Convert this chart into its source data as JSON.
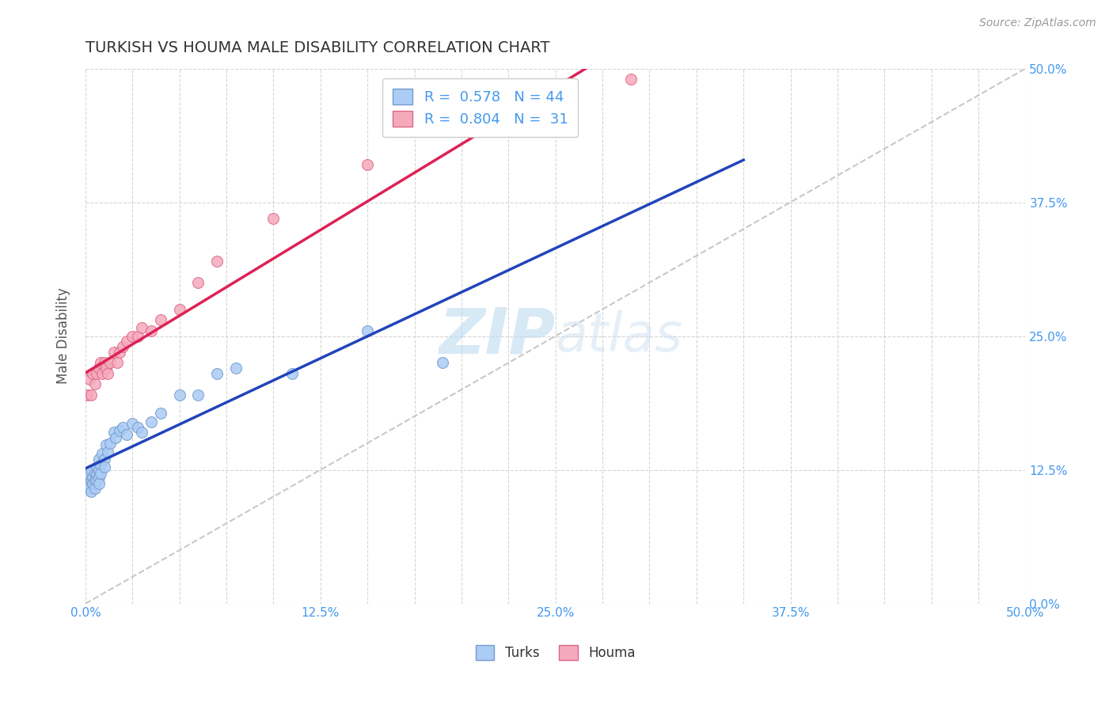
{
  "title": "TURKISH VS HOUMA MALE DISABILITY CORRELATION CHART",
  "source_text": "Source: ZipAtlas.com",
  "ylabel": "Male Disability",
  "xlim": [
    0.0,
    0.5
  ],
  "ylim": [
    0.0,
    0.5
  ],
  "background_color": "#ffffff",
  "grid_color": "#cccccc",
  "watermark_text": "ZIPatlas",
  "turks_color": "#aaccf5",
  "turks_edge_color": "#7799cc",
  "houma_color": "#f5aabc",
  "houma_edge_color": "#dd6688",
  "turks_line_color": "#2244bb",
  "houma_line_color": "#dd2255",
  "diagonal_color": "#bbbbbb",
  "R_turks": 0.578,
  "N_turks": 44,
  "R_houma": 0.804,
  "N_houma": 31,
  "title_color": "#333333",
  "axis_label_color": "#555555",
  "tick_label_color": "#4499ee",
  "legend_label_turks": "Turks",
  "legend_label_houma": "Houma",
  "turks_x": [
    0.001,
    0.001,
    0.002,
    0.002,
    0.003,
    0.003,
    0.003,
    0.004,
    0.004,
    0.005,
    0.005,
    0.005,
    0.006,
    0.006,
    0.006,
    0.007,
    0.007,
    0.007,
    0.007,
    0.008,
    0.008,
    0.009,
    0.01,
    0.01,
    0.011,
    0.012,
    0.013,
    0.015,
    0.016,
    0.018,
    0.02,
    0.022,
    0.025,
    0.028,
    0.03,
    0.035,
    0.04,
    0.05,
    0.06,
    0.07,
    0.08,
    0.11,
    0.15,
    0.19
  ],
  "turks_y": [
    0.115,
    0.11,
    0.12,
    0.108,
    0.125,
    0.115,
    0.105,
    0.118,
    0.112,
    0.122,
    0.115,
    0.108,
    0.128,
    0.12,
    0.115,
    0.135,
    0.125,
    0.118,
    0.112,
    0.13,
    0.122,
    0.14,
    0.135,
    0.128,
    0.148,
    0.142,
    0.15,
    0.16,
    0.155,
    0.162,
    0.165,
    0.158,
    0.168,
    0.165,
    0.16,
    0.17,
    0.178,
    0.195,
    0.195,
    0.215,
    0.22,
    0.215,
    0.255,
    0.225
  ],
  "houma_x": [
    0.001,
    0.002,
    0.003,
    0.004,
    0.005,
    0.006,
    0.007,
    0.008,
    0.009,
    0.01,
    0.011,
    0.012,
    0.013,
    0.015,
    0.017,
    0.018,
    0.02,
    0.022,
    0.025,
    0.028,
    0.03,
    0.035,
    0.04,
    0.05,
    0.06,
    0.07,
    0.1,
    0.15,
    0.2,
    0.25,
    0.29
  ],
  "houma_y": [
    0.195,
    0.21,
    0.195,
    0.215,
    0.205,
    0.215,
    0.22,
    0.225,
    0.215,
    0.225,
    0.22,
    0.215,
    0.225,
    0.235,
    0.225,
    0.235,
    0.24,
    0.245,
    0.25,
    0.25,
    0.258,
    0.255,
    0.265,
    0.275,
    0.3,
    0.32,
    0.36,
    0.41,
    0.445,
    0.46,
    0.49
  ],
  "marker_size": 100
}
